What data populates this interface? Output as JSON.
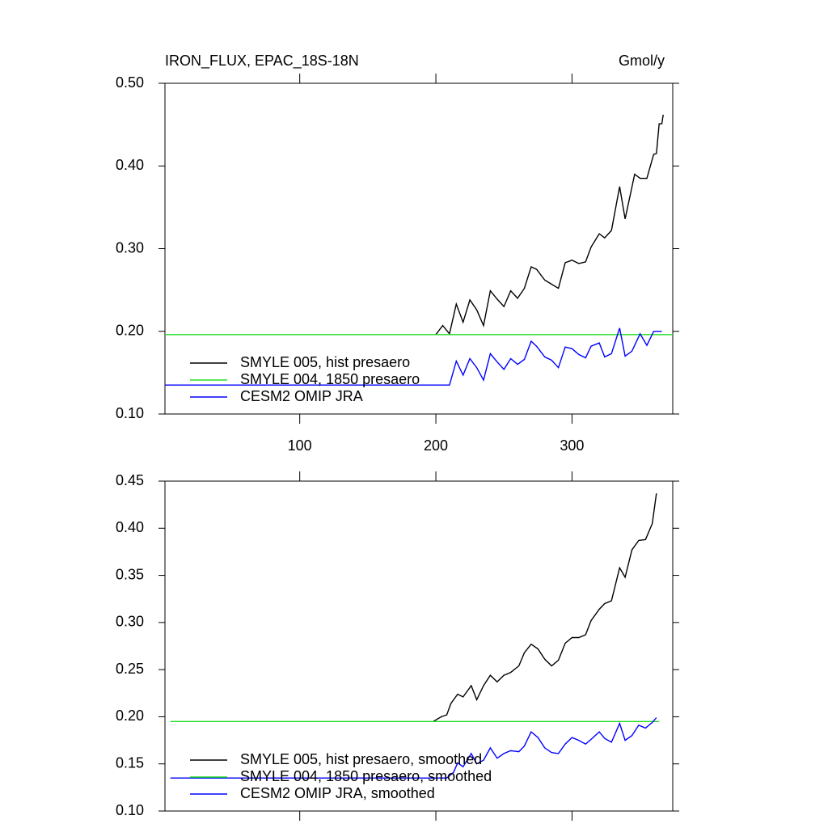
{
  "chart_data": [
    {
      "type": "line",
      "title": "IRON_FLUX, EPAC_18S-18N",
      "units": "Gmol/y",
      "xlim": [
        1,
        374
      ],
      "xticks": [
        100,
        200,
        300
      ],
      "xticklabels": true,
      "ylim": [
        0.1,
        0.5
      ],
      "yticks": [
        {
          "value": 0.1,
          "label": "0.10"
        },
        {
          "value": 0.2,
          "label": "0.20"
        },
        {
          "value": 0.3,
          "label": "0.30"
        },
        {
          "value": 0.4,
          "label": "0.40"
        },
        {
          "value": 0.5,
          "label": "0.50"
        }
      ],
      "legend": "lower left",
      "series": [
        {
          "name": "SMYLE 005, hist presaero",
          "color": "#000000",
          "x": [
            200,
            205,
            210,
            215,
            220,
            225,
            230,
            235,
            240,
            245,
            250,
            255,
            260,
            265,
            270,
            274,
            280,
            285,
            290,
            295,
            300,
            305,
            310,
            314,
            320,
            324,
            329,
            335,
            339,
            346,
            350,
            355,
            360,
            362,
            364,
            366,
            367
          ],
          "values": [
            0.196,
            0.207,
            0.197,
            0.233,
            0.211,
            0.238,
            0.226,
            0.207,
            0.249,
            0.239,
            0.23,
            0.249,
            0.24,
            0.252,
            0.278,
            0.275,
            0.262,
            0.257,
            0.252,
            0.283,
            0.286,
            0.282,
            0.284,
            0.302,
            0.318,
            0.313,
            0.322,
            0.375,
            0.336,
            0.39,
            0.385,
            0.385,
            0.414,
            0.415,
            0.451,
            0.451,
            0.462
          ]
        },
        {
          "name": "SMYLE 004, 1850 presaero",
          "color": "#22dd22",
          "x": [
            1,
            374
          ],
          "values": [
            0.196,
            0.196
          ]
        },
        {
          "name": "CESM2 OMIP JRA",
          "color": "#0000ff",
          "x": [
            1,
            210,
            215,
            220,
            225,
            230,
            235,
            240,
            245,
            250,
            255,
            260,
            265,
            270,
            274,
            280,
            285,
            290,
            295,
            300,
            305,
            310,
            314,
            320,
            324,
            329,
            335,
            339,
            344,
            350,
            355,
            360,
            362,
            366
          ],
          "values": [
            0.135,
            0.135,
            0.164,
            0.147,
            0.167,
            0.156,
            0.141,
            0.173,
            0.163,
            0.154,
            0.167,
            0.16,
            0.166,
            0.188,
            0.182,
            0.169,
            0.165,
            0.156,
            0.181,
            0.179,
            0.172,
            0.168,
            0.182,
            0.186,
            0.169,
            0.173,
            0.204,
            0.17,
            0.176,
            0.197,
            0.183,
            0.2,
            0.2,
            0.2
          ]
        }
      ]
    },
    {
      "type": "line",
      "xlim": [
        1,
        374
      ],
      "xticks": [
        100,
        200,
        300
      ],
      "xticklabels": false,
      "ylim": [
        0.1,
        0.45
      ],
      "yticks": [
        {
          "value": 0.1,
          "label": "0.10"
        },
        {
          "value": 0.15,
          "label": "0.15"
        },
        {
          "value": 0.2,
          "label": "0.20"
        },
        {
          "value": 0.25,
          "label": "0.25"
        },
        {
          "value": 0.3,
          "label": "0.30"
        },
        {
          "value": 0.35,
          "label": "0.35"
        },
        {
          "value": 0.4,
          "label": "0.40"
        },
        {
          "value": 0.45,
          "label": "0.45"
        }
      ],
      "legend": "lower left",
      "series": [
        {
          "name": "SMYLE 005, hist presaero, smoothed",
          "color": "#000000",
          "x": [
            198,
            204,
            208,
            211,
            216,
            220,
            226,
            230,
            235,
            240,
            245,
            250,
            255,
            261,
            265,
            270,
            275,
            280,
            285,
            290,
            295,
            300,
            305,
            310,
            314,
            320,
            324,
            329,
            335,
            339,
            344,
            349,
            354,
            359,
            362
          ],
          "values": [
            0.195,
            0.2,
            0.202,
            0.214,
            0.224,
            0.221,
            0.233,
            0.218,
            0.233,
            0.244,
            0.237,
            0.244,
            0.247,
            0.254,
            0.268,
            0.277,
            0.272,
            0.261,
            0.254,
            0.26,
            0.278,
            0.284,
            0.284,
            0.287,
            0.302,
            0.314,
            0.32,
            0.323,
            0.358,
            0.348,
            0.377,
            0.387,
            0.388,
            0.405,
            0.437
          ]
        },
        {
          "name": "SMYLE 004, 1850 presaero, smoothed",
          "color": "#22dd22",
          "x": [
            5,
            364
          ],
          "values": [
            0.195,
            0.195
          ]
        },
        {
          "name": "CESM2 OMIP JRA, smoothed",
          "color": "#0000ff",
          "x": [
            5,
            208,
            213,
            216,
            220,
            226,
            230,
            235,
            240,
            245,
            250,
            255,
            261,
            265,
            270,
            275,
            280,
            285,
            290,
            295,
            300,
            305,
            310,
            314,
            320,
            324,
            329,
            335,
            339,
            344,
            349,
            354,
            359,
            362
          ],
          "values": [
            0.135,
            0.135,
            0.141,
            0.151,
            0.147,
            0.161,
            0.15,
            0.154,
            0.167,
            0.156,
            0.161,
            0.164,
            0.163,
            0.169,
            0.184,
            0.178,
            0.167,
            0.162,
            0.161,
            0.171,
            0.178,
            0.175,
            0.171,
            0.176,
            0.184,
            0.177,
            0.173,
            0.193,
            0.175,
            0.18,
            0.191,
            0.188,
            0.194,
            0.199
          ]
        }
      ]
    }
  ]
}
